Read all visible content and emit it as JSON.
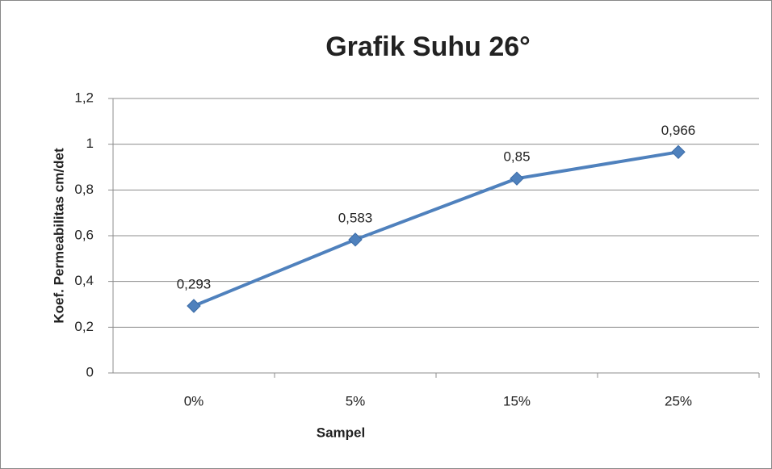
{
  "chart_data": {
    "type": "line",
    "title": "Grafik Suhu 26°",
    "x_label": "Sampel",
    "y_label": "Koef. Permeabilitas cm/det",
    "categories": [
      "0%",
      "5%",
      "15%",
      "25%"
    ],
    "values": [
      0.293,
      0.583,
      0.85,
      0.966
    ],
    "value_labels": [
      "0,293",
      "0,583",
      "0,85",
      "0,966"
    ],
    "color": "#4f81bd",
    "ylim": [
      0,
      1.2
    ],
    "yticks": [
      0,
      {
        "value": 0.2,
        "label": "0,2"
      },
      {
        "value": 0.4,
        "label": "0,4"
      },
      {
        "value": 0.6,
        "label": "0,6"
      },
      {
        "value": 0.8,
        "label": "0,8"
      },
      1,
      {
        "value": 1.2,
        "label": "1,2"
      }
    ],
    "grid": true
  }
}
